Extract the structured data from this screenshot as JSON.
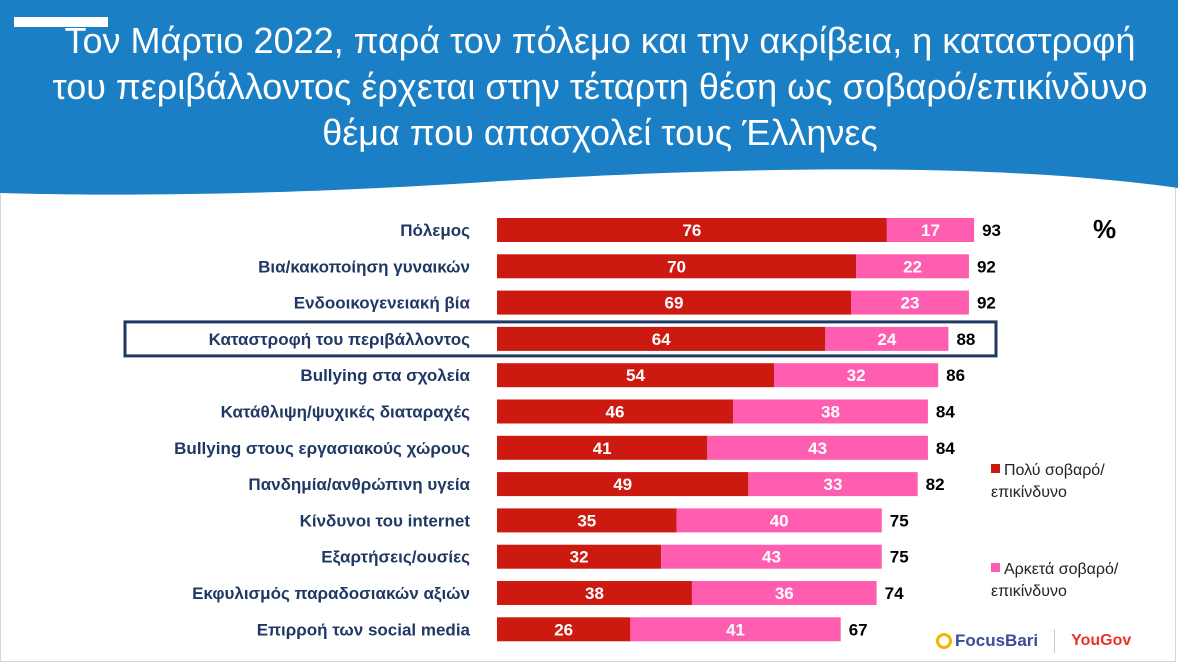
{
  "title": "Τον Μάρτιο 2022, παρά τον πόλεμο και την ακρίβεια, η καταστροφή του περιβάλλοντος έρχεται στην τέταρτη θέση ως σοβαρό/επικίνδυνο θέμα που απασχολεί τους Έλληνες",
  "unit_label": "%",
  "colors": {
    "header": "#1a7fc4",
    "series1": "#cc1a10",
    "series2": "#ff5eb0",
    "highlight": "#1f3864"
  },
  "chart_data": {
    "type": "bar",
    "orientation": "horizontal",
    "stacked": true,
    "categories": [
      "Πόλεμος",
      "Βια/κακοποίηση γυναικών",
      "Ενδοοικογενειακή βία",
      "Καταστροφή του περιβάλλοντος",
      "Bullying στα σχολεία",
      "Κατάθλιψη/ψυχικές διαταραχές",
      "Bullying στους εργασιακούς χώρους",
      "Πανδημία/ανθρώπινη υγεία",
      "Κίνδυνοι του internet",
      "Εξαρτήσεις/ουσίες",
      "Εκφυλισμός παραδοσιακών αξιών",
      "Επιρροή των social media"
    ],
    "series": [
      {
        "name": "Πολύ σοβαρό/ επικίνδυνο",
        "values": [
          76,
          70,
          69,
          64,
          54,
          46,
          41,
          49,
          35,
          32,
          38,
          26
        ]
      },
      {
        "name": "Αρκετά σοβαρό/ επικίνδυνο",
        "values": [
          17,
          22,
          23,
          24,
          32,
          38,
          43,
          33,
          40,
          43,
          36,
          41
        ]
      }
    ],
    "totals": [
      93,
      92,
      92,
      88,
      86,
      84,
      84,
      82,
      75,
      75,
      74,
      67
    ],
    "highlighted_category": "Καταστροφή του περιβάλλοντος",
    "legend_position": "right",
    "grid": false
  },
  "logos": {
    "focus": "FocusBari",
    "yougov": "YouGov"
  }
}
